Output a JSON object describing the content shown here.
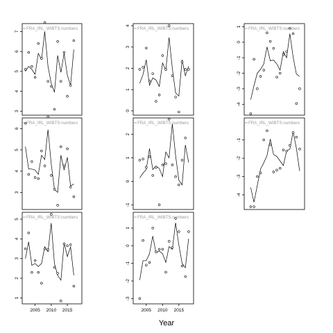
{
  "figure": {
    "xlabel": "Year"
  },
  "chart_data": [
    {
      "type": "scatter",
      "title": "FRA_IRL_WIBTS:numbers",
      "ylim": [
        2.8,
        7.4
      ],
      "yticks": [
        3,
        4,
        5,
        6,
        7
      ],
      "xticks": [],
      "xlim": [
        2001,
        2019.5
      ],
      "points": [
        [
          2002,
          5.1
        ],
        [
          2003,
          5.95
        ],
        [
          2004,
          5.25
        ],
        [
          2005,
          4.7
        ],
        [
          2006,
          6.4
        ],
        [
          2007,
          5.65
        ],
        [
          2008,
          7.45
        ],
        [
          2009,
          4.5
        ],
        [
          2010,
          4.25
        ],
        [
          2011,
          3.1
        ],
        [
          2012,
          6.5
        ],
        [
          2013,
          4.5
        ],
        [
          2014,
          5.95
        ],
        [
          2015,
          3.75
        ],
        [
          2016,
          4.3
        ],
        [
          2017,
          6.55
        ]
      ],
      "line": [
        [
          2002,
          5.0
        ],
        [
          2003,
          5.25
        ],
        [
          2004,
          5.1
        ],
        [
          2005,
          4.85
        ],
        [
          2006,
          5.9
        ],
        [
          2007,
          5.6
        ],
        [
          2008,
          7.0
        ],
        [
          2009,
          5.25
        ],
        [
          2010,
          4.4
        ],
        [
          2011,
          3.95
        ],
        [
          2012,
          5.8
        ],
        [
          2013,
          4.95
        ],
        [
          2014,
          5.9
        ],
        [
          2015,
          4.8
        ],
        [
          2016,
          4.3
        ],
        [
          2017,
          6.1
        ]
      ]
    },
    {
      "type": "scatter",
      "title": "FRA_IRL_WIBTS:numbers",
      "ylim": [
        -0.2,
        4.1
      ],
      "yticks": [
        0,
        1,
        2,
        3,
        4
      ],
      "xticks": [],
      "xlim": [
        2001,
        2019.5
      ],
      "points": [
        [
          2003,
          1.95
        ],
        [
          2004,
          2.05
        ],
        [
          2005,
          2.95
        ],
        [
          2006,
          1.4
        ],
        [
          2007,
          1.75
        ],
        [
          2008,
          0.45
        ],
        [
          2009,
          0.75
        ],
        [
          2010,
          2.6
        ],
        [
          2011,
          1.95
        ],
        [
          2012,
          4.0
        ],
        [
          2013,
          1.65
        ],
        [
          2014,
          0.65
        ],
        [
          2015,
          -0.05
        ],
        [
          2016,
          2.3
        ],
        [
          2017,
          1.95
        ],
        [
          2018,
          1.95
        ]
      ],
      "line": [
        [
          2003,
          1.3
        ],
        [
          2004,
          1.7
        ],
        [
          2005,
          2.4
        ],
        [
          2006,
          1.2
        ],
        [
          2007,
          1.55
        ],
        [
          2008,
          1.45
        ],
        [
          2009,
          1.15
        ],
        [
          2010,
          2.25
        ],
        [
          2011,
          1.9
        ],
        [
          2012,
          3.45
        ],
        [
          2013,
          2.0
        ],
        [
          2014,
          0.85
        ],
        [
          2015,
          0.7
        ],
        [
          2016,
          2.4
        ],
        [
          2017,
          1.65
        ],
        [
          2018,
          2.1
        ]
      ]
    },
    {
      "type": "scatter",
      "title": "FRA_IRL_WIBTS:numbers",
      "ylim": [
        -4.7,
        1.2
      ],
      "yticks": [
        -4,
        -3,
        -2,
        -1,
        0,
        1
      ],
      "xticks": [],
      "xlim": [
        2001,
        2019.5
      ],
      "points": [
        [
          2003,
          -4.6
        ],
        [
          2004,
          -1.1
        ],
        [
          2005,
          -3.0
        ],
        [
          2006,
          -2.2
        ],
        [
          2007,
          -1.8
        ],
        [
          2008,
          0.6
        ],
        [
          2009,
          0.05
        ],
        [
          2010,
          -0.4
        ],
        [
          2011,
          -2.25
        ],
        [
          2012,
          -2.0
        ],
        [
          2013,
          -0.8
        ],
        [
          2014,
          -0.6
        ],
        [
          2015,
          0.9
        ],
        [
          2016,
          0.55
        ],
        [
          2017,
          -3.95
        ],
        [
          2018,
          -3.0
        ]
      ],
      "line": [
        [
          2003,
          -3.7
        ],
        [
          2004,
          -2.8
        ],
        [
          2005,
          -2.0
        ],
        [
          2006,
          -1.75
        ],
        [
          2007,
          -1.4
        ],
        [
          2008,
          -0.3
        ],
        [
          2009,
          -1.2
        ],
        [
          2010,
          -1.15
        ],
        [
          2011,
          -1.4
        ],
        [
          2012,
          -1.8
        ],
        [
          2013,
          -0.6
        ],
        [
          2014,
          -1.0
        ],
        [
          2015,
          0.55
        ],
        [
          2016,
          -0.95
        ],
        [
          2017,
          -2.05
        ],
        [
          2018,
          -2.2
        ]
      ]
    },
    {
      "type": "scatter",
      "title": "FRA_IRL_WIBTS:numbers",
      "ylim": [
        2.2,
        6.5
      ],
      "yticks": [
        3,
        4,
        5,
        6
      ],
      "xticks": [],
      "xlim": [
        2001,
        2019.5
      ],
      "points": [
        [
          2002,
          6.25
        ],
        [
          2003,
          3.85
        ],
        [
          2004,
          4.45
        ],
        [
          2005,
          3.7
        ],
        [
          2006,
          3.65
        ],
        [
          2007,
          4.95
        ],
        [
          2008,
          4.25
        ],
        [
          2009,
          6.55
        ],
        [
          2010,
          3.8
        ],
        [
          2011,
          3.15
        ],
        [
          2012,
          2.4
        ],
        [
          2013,
          5.15
        ],
        [
          2014,
          4.25
        ],
        [
          2015,
          5.05
        ],
        [
          2016,
          3.25
        ],
        [
          2017,
          2.8
        ]
      ],
      "line": [
        [
          2002,
          5.15
        ],
        [
          2003,
          4.1
        ],
        [
          2004,
          4.1
        ],
        [
          2005,
          4.05
        ],
        [
          2006,
          3.85
        ],
        [
          2007,
          4.75
        ],
        [
          2008,
          4.55
        ],
        [
          2009,
          5.95
        ],
        [
          2010,
          4.35
        ],
        [
          2011,
          3.15
        ],
        [
          2012,
          3.0
        ],
        [
          2013,
          4.75
        ],
        [
          2014,
          4.05
        ],
        [
          2015,
          4.65
        ],
        [
          2016,
          3.3
        ],
        [
          2017,
          3.4
        ]
      ]
    },
    {
      "type": "scatter",
      "title": "FRA_IRL_WIBTS:numbers",
      "ylim": [
        -1.2,
        2.7
      ],
      "yticks": [
        -1,
        0,
        1,
        2
      ],
      "xticks": [],
      "xlim": [
        2001,
        2019.5
      ],
      "points": [
        [
          2003,
          0.9
        ],
        [
          2004,
          0.95
        ],
        [
          2005,
          0.6
        ],
        [
          2006,
          1.05
        ],
        [
          2007,
          0.25
        ],
        [
          2008,
          0.6
        ],
        [
          2009,
          -1.0
        ],
        [
          2010,
          0.7
        ],
        [
          2011,
          0.75
        ],
        [
          2012,
          2.65
        ],
        [
          2013,
          0.7
        ],
        [
          2014,
          0.2
        ],
        [
          2015,
          -0.15
        ],
        [
          2016,
          0.9
        ],
        [
          2017,
          1.85
        ]
      ],
      "line": [
        [
          2003,
          0.15
        ],
        [
          2004,
          0.35
        ],
        [
          2005,
          0.5
        ],
        [
          2006,
          1.4
        ],
        [
          2007,
          0.5
        ],
        [
          2008,
          0.65
        ],
        [
          2009,
          0.55
        ],
        [
          2010,
          0.2
        ],
        [
          2011,
          1.25
        ],
        [
          2012,
          1.0
        ],
        [
          2013,
          2.45
        ],
        [
          2014,
          1.1
        ],
        [
          2015,
          0.05
        ],
        [
          2016,
          -0.15
        ],
        [
          2017,
          1.55
        ],
        [
          2018,
          0.8
        ]
      ]
    },
    {
      "type": "scatter",
      "title": "FRA_IRL_WIBTS:numbers",
      "ylim": [
        -4.8,
        0.2
      ],
      "yticks": [
        -4,
        -3,
        -2,
        -1
      ],
      "xticks": [],
      "xlim": [
        2001,
        2019.5
      ],
      "points": [
        [
          2003,
          -4.65
        ],
        [
          2004,
          -4.65
        ],
        [
          2005,
          -3.0
        ],
        [
          2006,
          -2.8
        ],
        [
          2007,
          -1.0
        ],
        [
          2008,
          -0.5
        ],
        [
          2009,
          -1.25
        ],
        [
          2010,
          -2.75
        ],
        [
          2011,
          -2.65
        ],
        [
          2012,
          -2.55
        ],
        [
          2013,
          -1.55
        ],
        [
          2014,
          -1.6
        ],
        [
          2015,
          -1.3
        ],
        [
          2016,
          -0.6
        ],
        [
          2017,
          -0.85
        ],
        [
          2018,
          -1.5
        ]
      ],
      "line": [
        [
          2003,
          -3.6
        ],
        [
          2004,
          -4.4
        ],
        [
          2005,
          -3.5
        ],
        [
          2006,
          -2.6
        ],
        [
          2007,
          -2.25
        ],
        [
          2008,
          -1.85
        ],
        [
          2009,
          -0.95
        ],
        [
          2010,
          -1.8
        ],
        [
          2011,
          -1.9
        ],
        [
          2012,
          -2.15
        ],
        [
          2013,
          -2.4
        ],
        [
          2014,
          -1.6
        ],
        [
          2015,
          -1.5
        ],
        [
          2016,
          -0.55
        ],
        [
          2017,
          -1.45
        ],
        [
          2018,
          -2.7
        ]
      ]
    },
    {
      "type": "scatter",
      "title": "FRA_IRL_WIBTS:numbers",
      "ylim": [
        0.7,
        5.35
      ],
      "yticks": [
        1,
        2,
        3,
        4,
        5
      ],
      "xticks": [
        2005,
        2010,
        2015
      ],
      "xlim": [
        2001,
        2019.5
      ],
      "points": [
        [
          2002,
          3.5
        ],
        [
          2003,
          4.3
        ],
        [
          2004,
          2.3
        ],
        [
          2005,
          2.9
        ],
        [
          2006,
          2.3
        ],
        [
          2007,
          1.75
        ],
        [
          2008,
          3.5
        ],
        [
          2009,
          3.45
        ],
        [
          2010,
          5.25
        ],
        [
          2011,
          2.55
        ],
        [
          2012,
          2.25
        ],
        [
          2013,
          0.85
        ],
        [
          2014,
          3.75
        ],
        [
          2015,
          3.65
        ],
        [
          2016,
          3.7
        ],
        [
          2017,
          1.6
        ]
      ],
      "line": [
        [
          2002,
          3.0
        ],
        [
          2003,
          3.85
        ],
        [
          2004,
          2.65
        ],
        [
          2005,
          2.75
        ],
        [
          2006,
          2.6
        ],
        [
          2007,
          2.75
        ],
        [
          2008,
          3.6
        ],
        [
          2009,
          3.35
        ],
        [
          2010,
          4.8
        ],
        [
          2011,
          2.75
        ],
        [
          2012,
          2.15
        ],
        [
          2013,
          1.9
        ],
        [
          2014,
          3.8
        ],
        [
          2015,
          3.1
        ],
        [
          2016,
          3.6
        ],
        [
          2017,
          2.15
        ]
      ]
    },
    {
      "type": "scatter",
      "title": "FRA_IRL_WIBTS:numbers",
      "ylim": [
        -3.3,
        1.9
      ],
      "yticks": [
        -3,
        -2,
        -1,
        0,
        1
      ],
      "xticks": [
        2005,
        2010,
        2015
      ],
      "xlim": [
        2001,
        2019.5
      ],
      "points": [
        [
          2003,
          -3.0
        ],
        [
          2004,
          0.3
        ],
        [
          2005,
          -1.1
        ],
        [
          2006,
          -0.95
        ],
        [
          2007,
          1.0
        ],
        [
          2008,
          -0.35
        ],
        [
          2009,
          -0.2
        ],
        [
          2010,
          -0.2
        ],
        [
          2011,
          -1.5
        ],
        [
          2012,
          0.25
        ],
        [
          2013,
          -0.1
        ],
        [
          2014,
          1.55
        ],
        [
          2015,
          0.8
        ],
        [
          2016,
          -1.15
        ],
        [
          2017,
          -1.75
        ],
        [
          2018,
          0.8
        ]
      ],
      "line": [
        [
          2003,
          -1.95
        ],
        [
          2004,
          -0.85
        ],
        [
          2005,
          -0.85
        ],
        [
          2006,
          -0.45
        ],
        [
          2007,
          0.55
        ],
        [
          2008,
          -0.4
        ],
        [
          2009,
          -0.3
        ],
        [
          2010,
          -0.45
        ],
        [
          2011,
          -0.95
        ],
        [
          2012,
          -0.05
        ],
        [
          2013,
          -0.2
        ],
        [
          2014,
          1.3
        ],
        [
          2015,
          0.05
        ],
        [
          2016,
          -1.0
        ],
        [
          2017,
          -1.25
        ],
        [
          2018,
          0.4
        ]
      ]
    }
  ]
}
